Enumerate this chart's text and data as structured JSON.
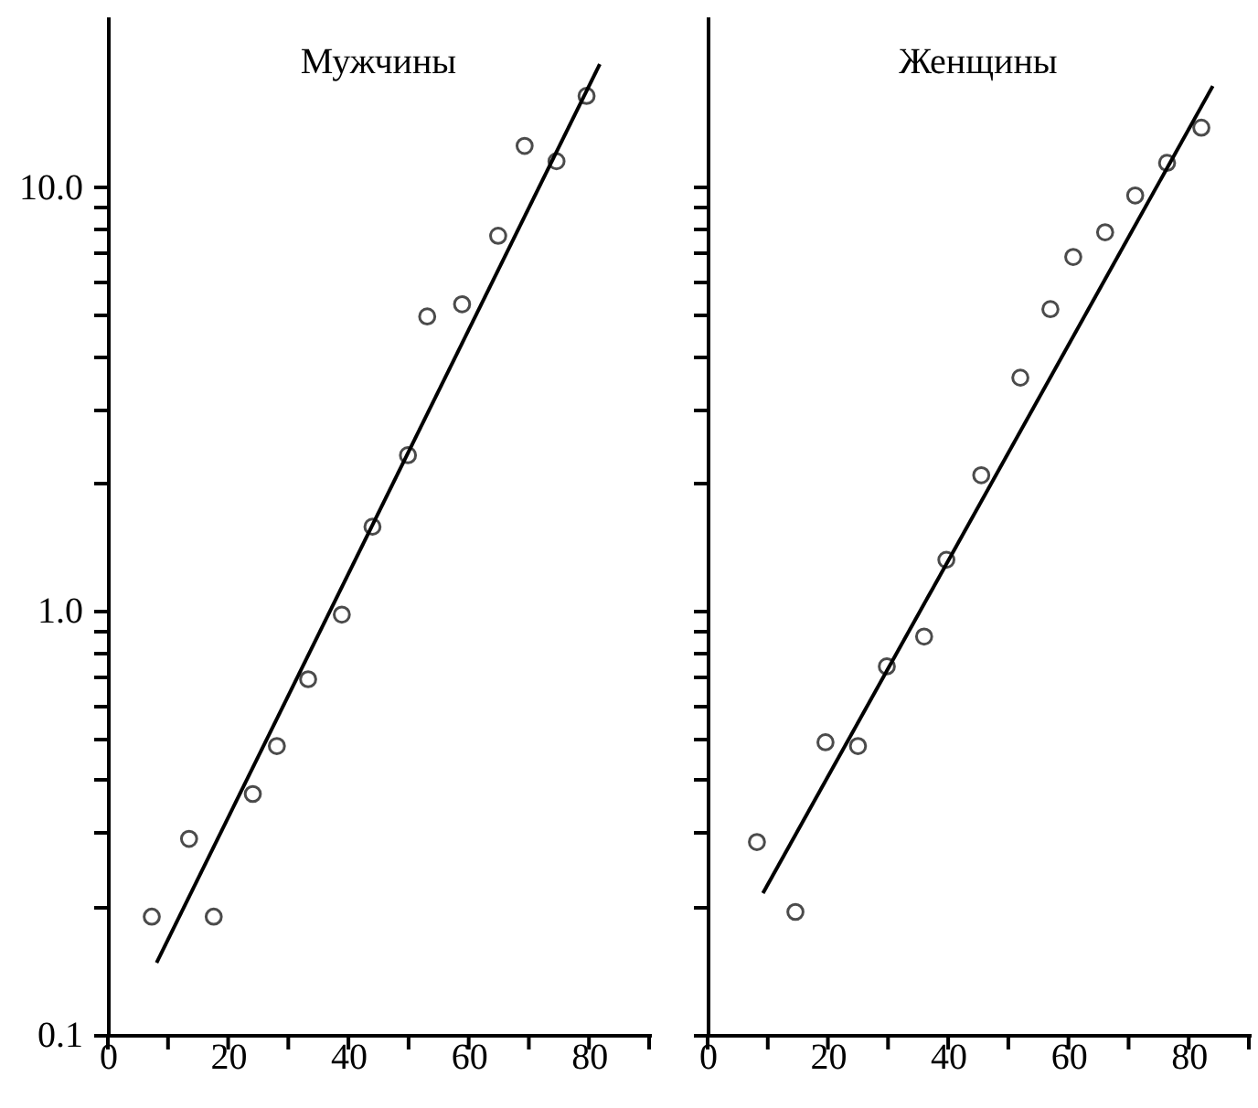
{
  "chart_data": [
    {
      "type": "scatter",
      "title": "Мужчины",
      "log": "y",
      "grid": false,
      "xlim": [
        0,
        90
      ],
      "ylim": [
        0.1,
        25
      ],
      "xticks": [
        0,
        {
          "value": 10,
          "label": null
        },
        20,
        {
          "value": 30,
          "label": null
        },
        40,
        {
          "value": 50,
          "label": null
        },
        60,
        {
          "value": 70,
          "label": null
        },
        80,
        {
          "value": 90,
          "label": null
        }
      ],
      "yticks": [
        {
          "value": 0.1,
          "label": "0.1"
        },
        {
          "value": 0.2,
          "label": null
        },
        {
          "value": 0.3,
          "label": null
        },
        {
          "value": 0.4,
          "label": null
        },
        {
          "value": 0.5,
          "label": null
        },
        {
          "value": 0.6,
          "label": null
        },
        {
          "value": 0.7,
          "label": null
        },
        {
          "value": 0.8,
          "label": null
        },
        {
          "value": 0.9,
          "label": null
        },
        {
          "value": 1,
          "label": "1.0"
        },
        {
          "value": 2,
          "label": null
        },
        {
          "value": 3,
          "label": null
        },
        {
          "value": 4,
          "label": null
        },
        {
          "value": 5,
          "label": null
        },
        {
          "value": 6,
          "label": null
        },
        {
          "value": 7,
          "label": null
        },
        {
          "value": 8,
          "label": null
        },
        {
          "value": 9,
          "label": null
        },
        {
          "value": 10,
          "label": "10.0"
        }
      ],
      "series": [
        {
          "color": "#000000",
          "marker": "circle",
          "x": [
            7.3,
            13.5,
            17.6,
            24.1,
            28.1,
            33.3,
            38.9,
            44,
            49.9,
            53.1,
            58.9,
            64.9,
            69.3,
            74.6,
            79.6
          ],
          "values": [
            0.19,
            0.29,
            0.19,
            0.37,
            0.48,
            0.69,
            0.98,
            1.58,
            2.33,
            4.95,
            5.29,
            7.67,
            12.5,
            11.5,
            16.4
          ]
        },
        {
          "type": "line",
          "color": "#000000",
          "marker": "none",
          "x": [
            8.1,
            81.8
          ],
          "values": [
            0.148,
            19.5
          ]
        }
      ]
    },
    {
      "type": "scatter",
      "title": "Женщины",
      "log": "y",
      "grid": false,
      "tick_labels": "x",
      "xlim": [
        0,
        90
      ],
      "ylim": [
        0.1,
        25
      ],
      "xticks": [
        0,
        {
          "value": 10,
          "label": null
        },
        20,
        {
          "value": 30,
          "label": null
        },
        40,
        {
          "value": 50,
          "label": null
        },
        60,
        {
          "value": 70,
          "label": null
        },
        80,
        {
          "value": 90,
          "label": null
        }
      ],
      "yticks": [
        {
          "value": 0.1,
          "label": null
        },
        {
          "value": 0.2,
          "label": null
        },
        {
          "value": 0.3,
          "label": null
        },
        {
          "value": 0.4,
          "label": null
        },
        {
          "value": 0.5,
          "label": null
        },
        {
          "value": 0.6,
          "label": null
        },
        {
          "value": 0.7,
          "label": null
        },
        {
          "value": 0.8,
          "label": null
        },
        {
          "value": 0.9,
          "label": null
        },
        {
          "value": 1,
          "label": null
        },
        {
          "value": 2,
          "label": null
        },
        {
          "value": 3,
          "label": null
        },
        {
          "value": 4,
          "label": null
        },
        {
          "value": 5,
          "label": null
        },
        {
          "value": 6,
          "label": null
        },
        {
          "value": 7,
          "label": null
        },
        {
          "value": 8,
          "label": null
        },
        {
          "value": 9,
          "label": null
        },
        {
          "value": 10,
          "label": null
        }
      ],
      "series": [
        {
          "color": "#000000",
          "marker": "circle",
          "x": [
            8.2,
            14.6,
            19.6,
            25.0,
            29.8,
            36.0,
            39.7,
            45.5,
            52.0,
            57.0,
            60.8,
            66.1,
            71.1,
            76.4,
            82.1
          ],
          "values": [
            0.285,
            0.195,
            0.49,
            0.48,
            0.74,
            0.87,
            1.32,
            2.09,
            3.55,
            5.15,
            6.84,
            7.82,
            9.55,
            11.4,
            13.8
          ]
        },
        {
          "type": "line",
          "color": "#000000",
          "marker": "none",
          "x": [
            9.2,
            84.0
          ],
          "values": [
            0.216,
            17.3
          ]
        }
      ]
    }
  ]
}
